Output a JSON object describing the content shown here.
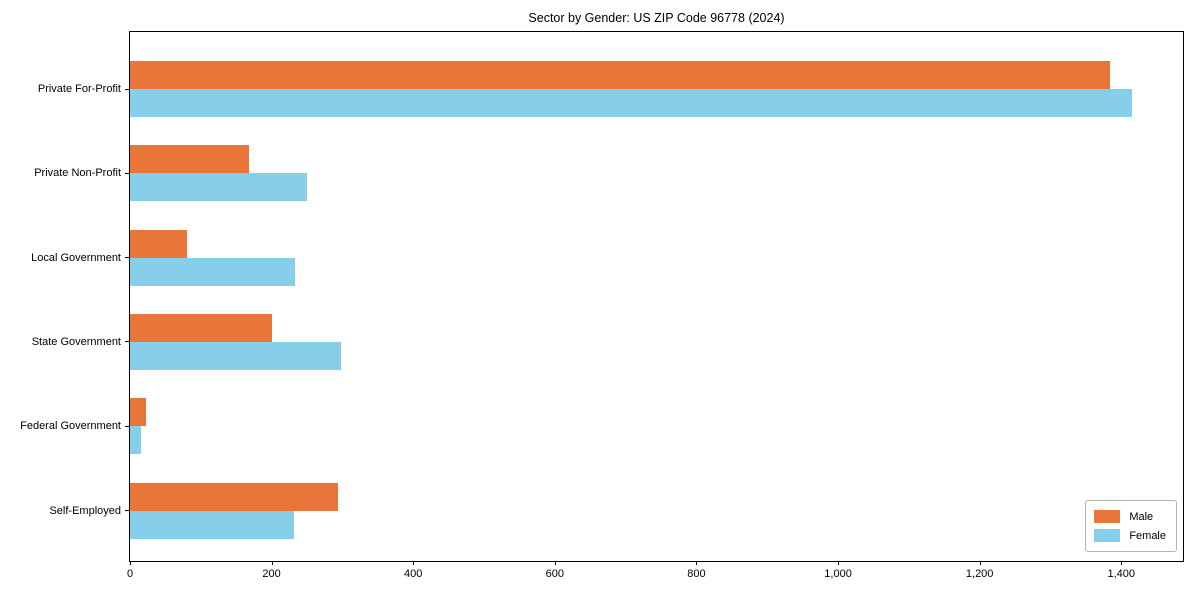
{
  "chart_data": {
    "type": "bar",
    "orientation": "horizontal",
    "title": "Sector by Gender: US ZIP Code 96778 (2024)",
    "categories": [
      "Private For-Profit",
      "Private Non-Profit",
      "Local Government",
      "State Government",
      "Federal Government",
      "Self-Employed"
    ],
    "series": [
      {
        "name": "Male",
        "color": "#e8763a",
        "values": [
          1386,
          168,
          80,
          201,
          23,
          294
        ]
      },
      {
        "name": "Female",
        "color": "#87ceeb",
        "values": [
          1418,
          250,
          234,
          299,
          16,
          232
        ]
      }
    ],
    "xlabel": "",
    "ylabel": "",
    "xlim": [
      0,
      1490
    ],
    "xticks": [
      0,
      200,
      400,
      600,
      800,
      1000,
      1200,
      1400
    ],
    "xtick_labels": [
      "0",
      "200",
      "400",
      "600",
      "800",
      "1,000",
      "1,200",
      "1,400"
    ],
    "grid": false,
    "legend": {
      "position": "lower-right",
      "entries": [
        "Male",
        "Female"
      ]
    }
  }
}
